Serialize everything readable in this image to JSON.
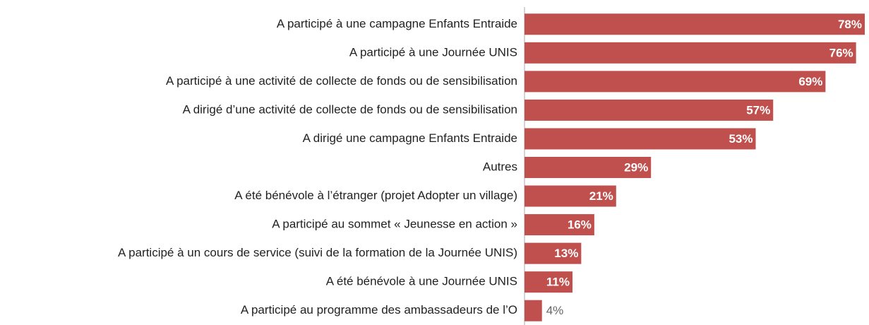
{
  "chart_data": {
    "type": "bar",
    "orientation": "horizontal",
    "categories": [
      "A participé à une campagne Enfants Entraide",
      "A participé à une Journée UNIS",
      "A participé à une activité de collecte de fonds ou de sensibilisation",
      "A dirigé d’une activité de collecte de fonds ou de sensibilisation",
      "A dirigé une campagne Enfants Entraide",
      "Autres",
      "A été bénévole à l’étranger (projet Adopter un village)",
      "A participé au sommet « Jeunesse en action »",
      "A participé à un cours de service (suivi de la formation de la Journée UNIS)",
      "A été bénévole à une Journée UNIS",
      "A participé au programme des ambassadeurs de l’O"
    ],
    "values": [
      78,
      76,
      69,
      57,
      53,
      29,
      21,
      16,
      13,
      11,
      4
    ],
    "value_labels": [
      "78%",
      "76%",
      "69%",
      "57%",
      "53%",
      "29%",
      "21%",
      "16%",
      "13%",
      "11%",
      "4%"
    ],
    "color": "#c0504d",
    "xlim": [
      0,
      78
    ]
  }
}
